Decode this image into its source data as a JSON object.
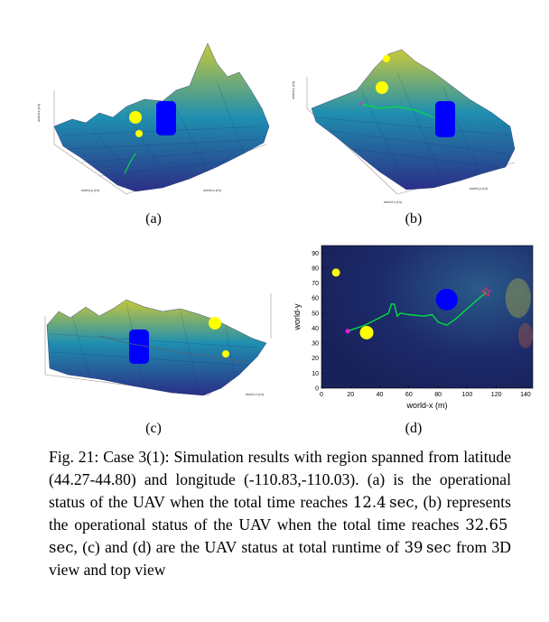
{
  "panels": {
    "a": {
      "label": "(a)"
    },
    "b": {
      "label": "(b)"
    },
    "c": {
      "label": "(c)"
    },
    "d": {
      "label": "(d)"
    }
  },
  "axis_text": {
    "world_x_3d": "world-x (m)",
    "world_y_3d": "world-y (m)",
    "world_z_3d": "world-z (m)",
    "xlabel_d": "world-x (m)",
    "ylabel_d": "world-y"
  },
  "caption": {
    "prefix": "Fig. 21: Case 3(1): Simulation results with region spanned from latitude (44.27-44.80) and longitude (-110.83,-110.03). (a) is the operational status of the UAV when the total time reaches ",
    "t1": "12.4",
    "u1": "sec",
    "mid1": ", (b) represents the operational status of the UAV when the total time reaches ",
    "t2": "32.65",
    "u2": "sec",
    "mid2": ", (c) and (d) are the UAV status at total runtime of ",
    "t3": "39",
    "u3": "sec",
    "suffix": " from 3D view and top view"
  },
  "colors": {
    "terrain_low": "#2b2f86",
    "terrain_mid": "#1f8fb0",
    "terrain_high": "#c8c83a",
    "obstacle": "#0000ff",
    "threat": "#ffff00",
    "path": "#00e040",
    "start": "#e020e0",
    "goal": "#e03060",
    "top_bg": "#1d2a6b"
  },
  "chart_data": {
    "type": "scatter",
    "title": "",
    "xlabel": "world-x (m)",
    "ylabel": "world-y",
    "xlim": [
      0,
      145
    ],
    "ylim": [
      0,
      95
    ],
    "xticks": [
      0,
      20,
      40,
      60,
      80,
      100,
      120,
      140
    ],
    "yticks": [
      0,
      10,
      20,
      30,
      40,
      50,
      60,
      70,
      80,
      90
    ],
    "obstacle_center": [
      86,
      59
    ],
    "start_point": [
      18,
      38
    ],
    "goal_point": [
      113,
      64
    ],
    "threats": [
      {
        "x": 10,
        "y": 77
      },
      {
        "x": 31,
        "y": 37
      }
    ],
    "path": {
      "x": [
        18,
        30,
        40,
        46,
        48,
        50,
        52,
        54,
        60,
        70,
        76,
        80,
        86,
        92,
        100,
        113
      ],
      "y": [
        38,
        42,
        47,
        50,
        56,
        56,
        48,
        50,
        49,
        48,
        49,
        44,
        42,
        46,
        53,
        64
      ]
    }
  }
}
